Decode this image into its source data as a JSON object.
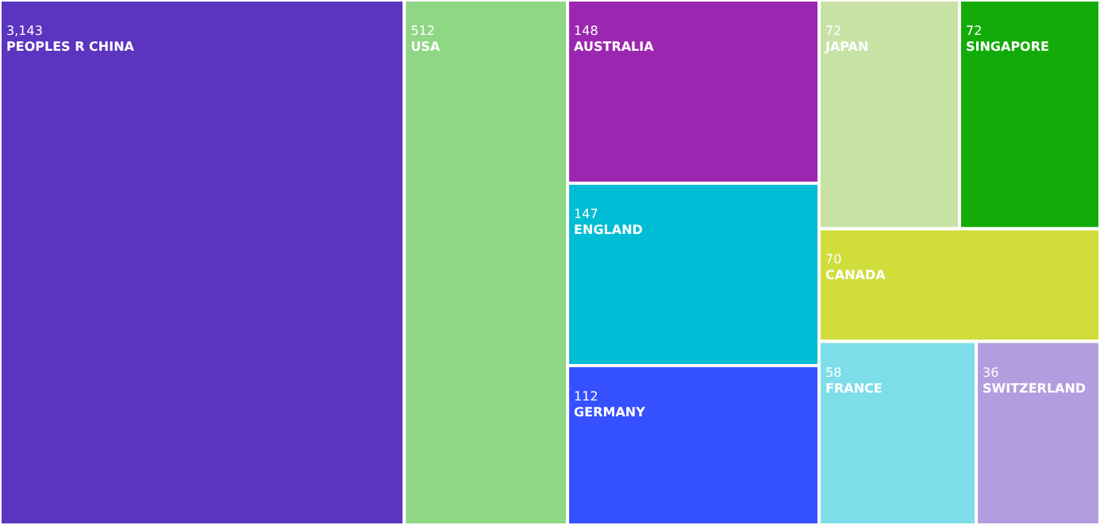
{
  "chart_data": {
    "type": "other",
    "categories": [
      "PEOPLES R CHINA",
      "USA",
      "AUSTRALIA",
      "ENGLAND",
      "GERMANY",
      "JAPAN",
      "SINGAPORE",
      "CANADA",
      "FRANCE",
      "SWITZERLAND"
    ],
    "values": [
      3143,
      512,
      148,
      147,
      112,
      72,
      72,
      70,
      58,
      36
    ],
    "value_labels": [
      "3,143",
      "512",
      "148",
      "147",
      "112",
      "72",
      "72",
      "70",
      "58",
      "36"
    ],
    "colors": [
      "#5b34bf",
      "#8fd685",
      "#9b27b0",
      "#00bcd4",
      "#3550ff",
      "#c8e2a6",
      "#13ab0a",
      "#d0dd3a",
      "#7ddde9",
      "#b39ddf"
    ]
  }
}
